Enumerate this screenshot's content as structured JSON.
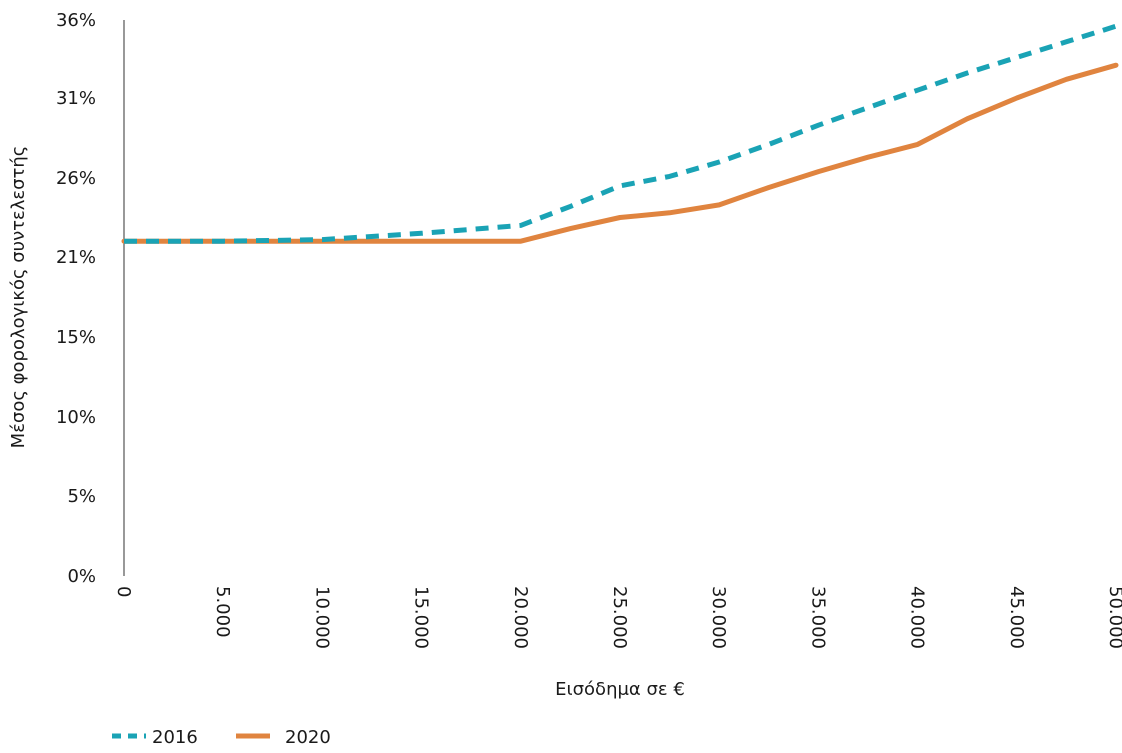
{
  "chart_data": {
    "type": "line",
    "title": "",
    "xlabel": "Εισόδημα σε €",
    "ylabel": "Μέσος φορολογικός συντελεστής",
    "xlim": [
      0,
      50000
    ],
    "ylim": [
      0,
      36
    ],
    "y_ticks": [
      0,
      5,
      10,
      15,
      21,
      26,
      31,
      36
    ],
    "y_tick_labels": [
      "0%",
      "5%",
      "10%",
      "15%",
      "21%",
      "26%",
      "31%",
      "36%"
    ],
    "x_ticks": [
      0,
      5000,
      10000,
      15000,
      20000,
      25000,
      30000,
      35000,
      40000,
      45000,
      50000
    ],
    "x_tick_labels": [
      "0",
      "5.000",
      "10.000",
      "15.000",
      "20.000",
      "25.000",
      "30.000",
      "35.000",
      "40.000",
      "45.000",
      "50.000"
    ],
    "grid": false,
    "legend_position": "bottom-left",
    "series": [
      {
        "name": "2016",
        "color": "#1aa3b5",
        "style": "dashed",
        "x": [
          0,
          5000,
          10000,
          15000,
          20000,
          22500,
          25000,
          27500,
          30000,
          32500,
          35000,
          37500,
          40000,
          42500,
          45000,
          47500,
          50000
        ],
        "y": [
          22,
          22,
          22.1,
          22.5,
          23,
          24.2,
          25.5,
          26.1,
          27,
          28.1,
          29.3,
          30.4,
          31.5,
          32.6,
          33.6,
          34.6,
          35.6
        ]
      },
      {
        "name": "2020",
        "color": "#e0843f",
        "style": "solid",
        "x": [
          0,
          5000,
          10000,
          15000,
          20000,
          22500,
          25000,
          27500,
          30000,
          32500,
          35000,
          37500,
          40000,
          42500,
          45000,
          47500,
          50000
        ],
        "y": [
          22,
          22,
          22,
          22,
          22,
          22.8,
          23.5,
          23.8,
          24.3,
          25.4,
          26.4,
          27.3,
          28.1,
          29.7,
          31,
          32.2,
          33.1
        ]
      }
    ]
  }
}
